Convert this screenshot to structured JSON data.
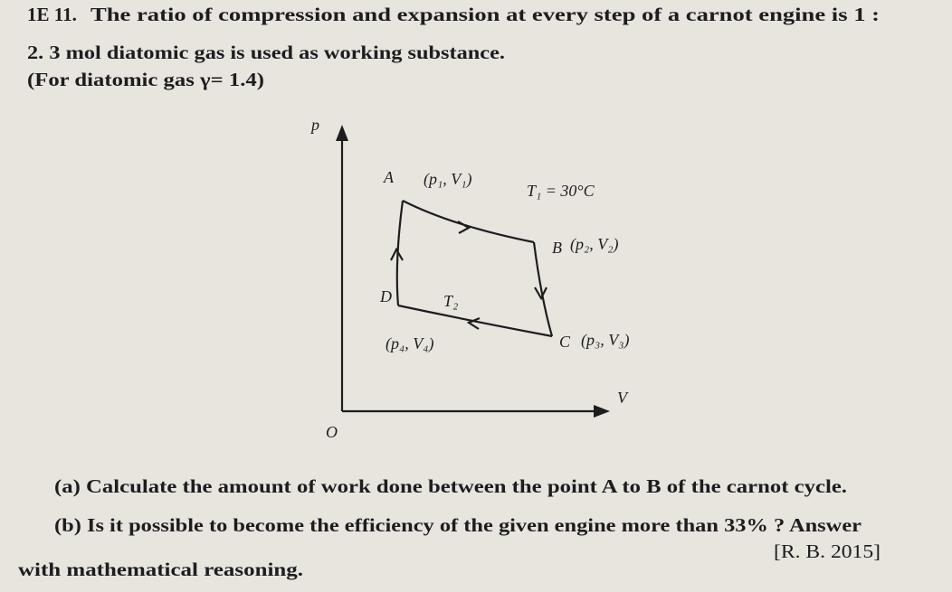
{
  "problem": {
    "number": "1E 11.",
    "lines": [
      "The ratio of compression and expansion at every step of a carnot engine is 1 :",
      "2. 3 mol diatomic gas is used as working substance.",
      "(For diatomic gas γ= 1.4)"
    ]
  },
  "diagram": {
    "y_axis": "p",
    "x_axis": "V",
    "origin": "O",
    "points": [
      {
        "label": "A",
        "coords": "(p₁, V₁)"
      },
      {
        "label": "B",
        "coords": "(p₂, V₂)"
      },
      {
        "label": "C",
        "coords": "(p₃, V₃)"
      },
      {
        "label": "D",
        "coords": "(p₄, V₄)"
      }
    ],
    "temperatures": [
      "T₁ = 30°C",
      "T₂"
    ]
  },
  "questions": {
    "a": "(a) Calculate the amount of work done between the point A to B of the carnot cycle.",
    "b_line1": "(b) Is it possible to become the efficiency of the given engine more than 33% ? Answer",
    "b_line2": "with mathematical reasoning.",
    "source": "[R. B. 2015]"
  }
}
